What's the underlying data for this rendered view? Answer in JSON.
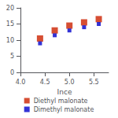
{
  "chart_data": {
    "type": "scatter",
    "xlabel": "Ince",
    "series": [
      {
        "name": "Diethyl malonate",
        "color": "#cc2200",
        "marker": "square",
        "x": [
          4.4,
          4.7,
          5.0,
          5.3,
          5.6
        ],
        "values": [
          10.5,
          13.0,
          14.5,
          15.5,
          16.5
        ]
      },
      {
        "name": "Dimethyl malonate",
        "color": "#0000cc",
        "marker": "square",
        "x": [
          4.4,
          4.7,
          5.0,
          5.3,
          5.6
        ],
        "values": [
          9.0,
          11.5,
          13.0,
          14.0,
          15.0
        ]
      }
    ],
    "xlim": [
      4.0,
      5.8
    ],
    "ylim": [
      0,
      20
    ],
    "xticks": [
      {
        "value": 4.0,
        "label": "4.0"
      },
      {
        "value": 4.5,
        "label": "4.5"
      },
      {
        "value": 5.0,
        "label": "5.0"
      },
      {
        "value": 5.5,
        "label": "5.5"
      }
    ],
    "yticks": [
      0,
      5,
      10,
      15,
      20
    ],
    "grid": false,
    "legend": "bottom"
  }
}
